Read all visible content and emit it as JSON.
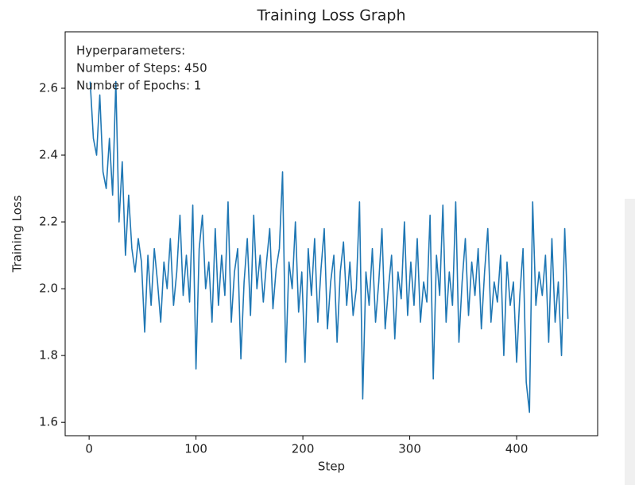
{
  "chart_data": {
    "type": "line",
    "title": "Training Loss Graph",
    "x_label": "Step",
    "y_label": "Training Loss",
    "annotations": [
      "Hyperparameters:",
      "Number of Steps: 450",
      "Number of Epochs: 1"
    ],
    "color": "#1f77b4",
    "grid": false,
    "xlim": [
      -22.4,
      475.8
    ],
    "ylim": [
      1.56,
      2.769
    ],
    "xticks": [
      0,
      100,
      200,
      300,
      400
    ],
    "yticks": [
      1.6,
      1.8,
      {
        "value": 2,
        "label": "2.0"
      },
      2.2,
      2.4,
      2.6
    ],
    "x": [
      1,
      4,
      7,
      10,
      13,
      16,
      19,
      22,
      25,
      28,
      31,
      34,
      37,
      40,
      43,
      46,
      49,
      52,
      55,
      58,
      61,
      64,
      67,
      70,
      73,
      76,
      79,
      82,
      85,
      88,
      91,
      94,
      97,
      100,
      103,
      106,
      109,
      112,
      115,
      118,
      121,
      124,
      127,
      130,
      133,
      136,
      139,
      142,
      145,
      148,
      151,
      154,
      157,
      160,
      163,
      166,
      169,
      172,
      175,
      178,
      181,
      184,
      187,
      190,
      193,
      196,
      199,
      202,
      205,
      208,
      211,
      214,
      217,
      220,
      223,
      226,
      229,
      232,
      235,
      238,
      241,
      244,
      247,
      250,
      253,
      256,
      259,
      262,
      265,
      268,
      271,
      274,
      277,
      280,
      283,
      286,
      289,
      292,
      295,
      298,
      301,
      304,
      307,
      310,
      313,
      316,
      319,
      322,
      325,
      328,
      331,
      334,
      337,
      340,
      343,
      346,
      349,
      352,
      355,
      358,
      361,
      364,
      367,
      370,
      373,
      376,
      379,
      382,
      385,
      388,
      391,
      394,
      397,
      400,
      403,
      406,
      409,
      412,
      415,
      418,
      421,
      424,
      427,
      430,
      433,
      436,
      439,
      442,
      445,
      448
    ],
    "values": [
      2.62,
      2.45,
      2.4,
      2.58,
      2.35,
      2.3,
      2.45,
      2.28,
      2.62,
      2.2,
      2.38,
      2.1,
      2.28,
      2.12,
      2.05,
      2.15,
      2.08,
      1.87,
      2.1,
      1.95,
      2.12,
      2.02,
      1.9,
      2.08,
      2.0,
      2.15,
      1.95,
      2.05,
      2.22,
      1.98,
      2.1,
      1.96,
      2.25,
      1.76,
      2.12,
      2.22,
      2.0,
      2.08,
      1.9,
      2.18,
      1.95,
      2.1,
      1.98,
      2.26,
      1.9,
      2.05,
      2.12,
      1.79,
      2.02,
      2.15,
      1.92,
      2.22,
      2.0,
      2.1,
      1.96,
      2.08,
      2.18,
      1.94,
      2.06,
      2.12,
      2.35,
      1.78,
      2.08,
      2.0,
      2.2,
      1.93,
      2.05,
      1.78,
      2.12,
      1.98,
      2.15,
      1.9,
      2.06,
      2.18,
      1.88,
      2.02,
      2.1,
      1.84,
      2.05,
      2.14,
      1.95,
      2.08,
      1.92,
      2.0,
      2.26,
      1.67,
      2.05,
      1.95,
      2.12,
      1.9,
      2.02,
      2.18,
      1.88,
      2.0,
      2.1,
      1.85,
      2.05,
      1.97,
      2.2,
      1.92,
      2.08,
      1.95,
      2.15,
      1.9,
      2.02,
      1.96,
      2.22,
      1.73,
      2.1,
      1.98,
      2.25,
      1.9,
      2.05,
      1.95,
      2.26,
      1.84,
      2.02,
      2.15,
      1.92,
      2.08,
      1.98,
      2.12,
      1.88,
      2.05,
      2.18,
      1.9,
      2.02,
      1.96,
      2.1,
      1.8,
      2.08,
      1.95,
      2.02,
      1.78,
      1.98,
      2.12,
      1.72,
      1.63,
      2.26,
      1.95,
      2.05,
      1.98,
      2.1,
      1.84,
      2.15,
      1.9,
      2.02,
      1.8,
      2.18,
      1.91
    ]
  }
}
